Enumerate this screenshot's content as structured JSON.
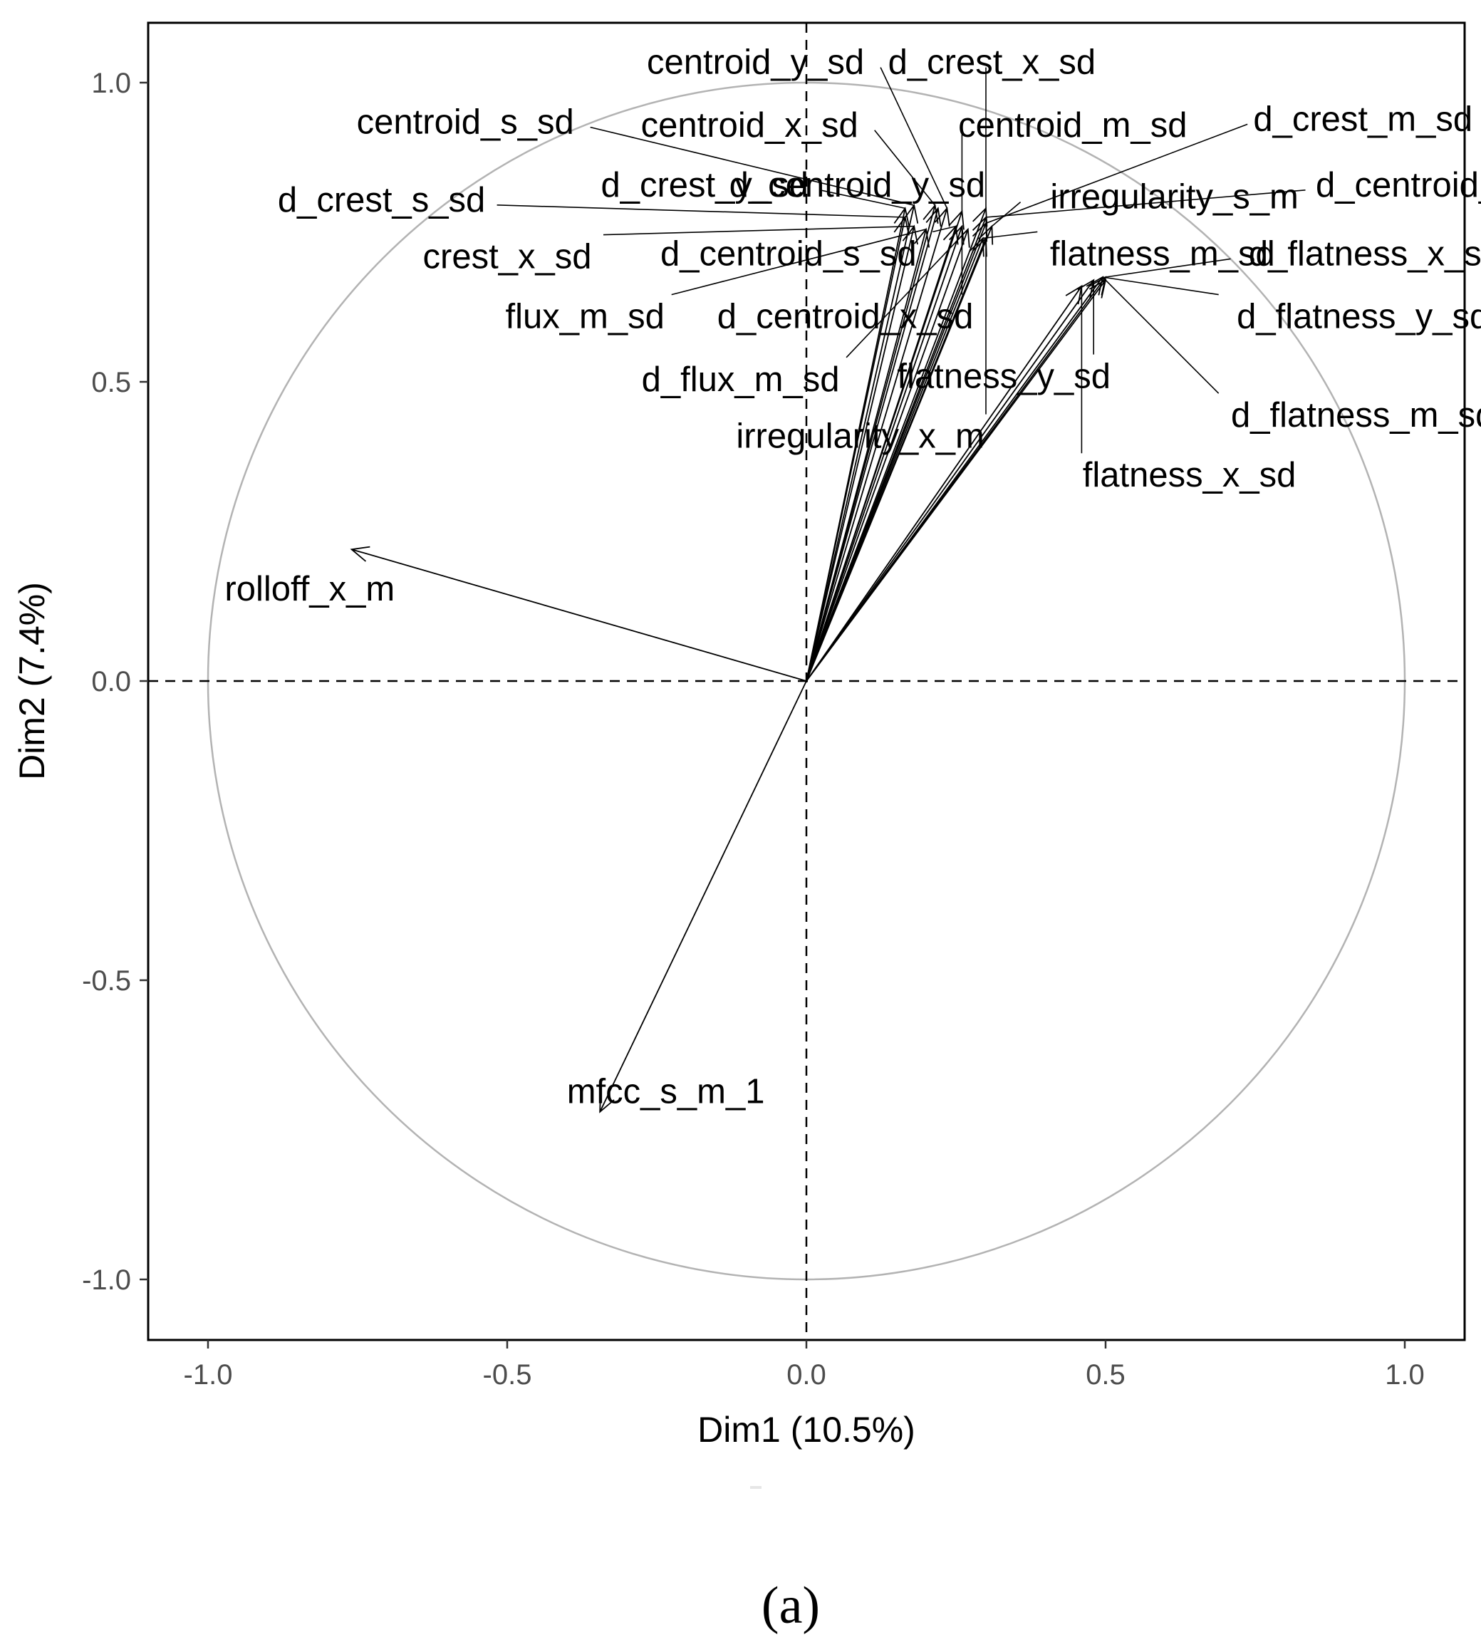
{
  "chart_data": {
    "type": "scatter",
    "subtype": "pca-variable-correlation-circle",
    "title": "",
    "xlabel": "Dim1 (10.5%)",
    "ylabel": "Dim2 (7.4%)",
    "xlim": [
      -1.1,
      1.1
    ],
    "ylim": [
      -1.1,
      1.1
    ],
    "xticks": [
      -1.0,
      -0.5,
      0.0,
      0.5,
      1.0
    ],
    "yticks": [
      -1.0,
      -0.5,
      0.0,
      0.5,
      1.0
    ],
    "xtick_labels": [
      "-1.0",
      "-0.5",
      "0.0",
      "0.5",
      "1.0"
    ],
    "ytick_labels": [
      "-1.0",
      "-0.5",
      "0.0",
      "0.5",
      "1.0"
    ],
    "unit_circle": true,
    "reference_lines": {
      "x": 0,
      "y": 0,
      "style": "dashed"
    },
    "grid": false,
    "panel_label": "(a)",
    "colors": {
      "arrows": "#000000",
      "circle": "#b3b3b3",
      "axis": "#000000",
      "ticks": "#4d4d4d"
    },
    "variables": [
      {
        "name": "centroid_y_sd",
        "x": 0.235,
        "y": 0.79,
        "lx": -0.085,
        "ly": 1.035,
        "anchor": "middle"
      },
      {
        "name": "d_crest_x_sd",
        "x": 0.3,
        "y": 0.79,
        "lx": 0.31,
        "ly": 1.035,
        "anchor": "middle"
      },
      {
        "name": "centroid_s_sd",
        "x": 0.18,
        "y": 0.795,
        "lx": -0.57,
        "ly": 0.935,
        "anchor": "middle"
      },
      {
        "name": "centroid_x_sd",
        "x": 0.215,
        "y": 0.795,
        "lx": -0.095,
        "ly": 0.93,
        "anchor": "middle"
      },
      {
        "name": "centroid_m_sd",
        "x": 0.26,
        "y": 0.785,
        "lx": 0.445,
        "ly": 0.93,
        "anchor": "middle"
      },
      {
        "name": "d_crest_m_sd",
        "x": 0.3,
        "y": 0.765,
        "lx": 0.93,
        "ly": 0.94,
        "anchor": "middle"
      },
      {
        "name": "d_crest_y_sd",
        "x": 0.165,
        "y": 0.79,
        "lx": -0.17,
        "ly": 0.83,
        "anchor": "middle"
      },
      {
        "name": "d_centroid_y_sd",
        "x": 0.22,
        "y": 0.79,
        "lx": 0.085,
        "ly": 0.83,
        "anchor": "middle"
      },
      {
        "name": "d_centroid_m_sd",
        "x": 0.3,
        "y": 0.775,
        "lx": 1.075,
        "ly": 0.83,
        "anchor": "middle"
      },
      {
        "name": "irregularity_s_m",
        "x": 0.31,
        "y": 0.76,
        "lx": 0.615,
        "ly": 0.81,
        "anchor": "middle"
      },
      {
        "name": "d_crest_s_sd",
        "x": 0.165,
        "y": 0.775,
        "lx": -0.71,
        "ly": 0.805,
        "anchor": "middle"
      },
      {
        "name": "crest_x_sd",
        "x": 0.18,
        "y": 0.76,
        "lx": -0.5,
        "ly": 0.71,
        "anchor": "middle"
      },
      {
        "name": "d_centroid_s_sd",
        "x": 0.25,
        "y": 0.76,
        "lx": -0.03,
        "ly": 0.715,
        "anchor": "middle"
      },
      {
        "name": "flatness_m_sd",
        "x": 0.295,
        "y": 0.74,
        "lx": 0.595,
        "ly": 0.715,
        "anchor": "middle"
      },
      {
        "name": "d_flatness_x_sd",
        "x": 0.5,
        "y": 0.675,
        "lx": 0.95,
        "ly": 0.715,
        "anchor": "middle"
      },
      {
        "name": "flux_m_sd",
        "x": 0.2,
        "y": 0.755,
        "lx": -0.37,
        "ly": 0.61,
        "anchor": "middle"
      },
      {
        "name": "d_centroid_x_sd",
        "x": 0.26,
        "y": 0.76,
        "lx": 0.065,
        "ly": 0.61,
        "anchor": "middle"
      },
      {
        "name": "d_flatness_y_sd",
        "x": 0.495,
        "y": 0.675,
        "lx": 0.93,
        "ly": 0.61,
        "anchor": "middle"
      },
      {
        "name": "d_flux_m_sd",
        "x": 0.27,
        "y": 0.755,
        "lx": -0.11,
        "ly": 0.505,
        "anchor": "middle"
      },
      {
        "name": "flatness_y_sd",
        "x": 0.48,
        "y": 0.67,
        "lx": 0.33,
        "ly": 0.51,
        "anchor": "middle"
      },
      {
        "name": "d_flatness_m_sd",
        "x": 0.5,
        "y": 0.67,
        "lx": 0.93,
        "ly": 0.445,
        "anchor": "middle"
      },
      {
        "name": "irregularity_x_m",
        "x": 0.3,
        "y": 0.74,
        "lx": 0.09,
        "ly": 0.41,
        "anchor": "middle"
      },
      {
        "name": "flatness_x_sd",
        "x": 0.46,
        "y": 0.66,
        "lx": 0.64,
        "ly": 0.345,
        "anchor": "middle"
      },
      {
        "name": "rolloff_x_m",
        "x": -0.76,
        "y": 0.22,
        "lx": -0.83,
        "ly": 0.155,
        "anchor": "middle"
      },
      {
        "name": "mfcc_s_m_1",
        "x": -0.345,
        "y": -0.72,
        "lx": -0.235,
        "ly": -0.685,
        "anchor": "middle"
      }
    ]
  }
}
